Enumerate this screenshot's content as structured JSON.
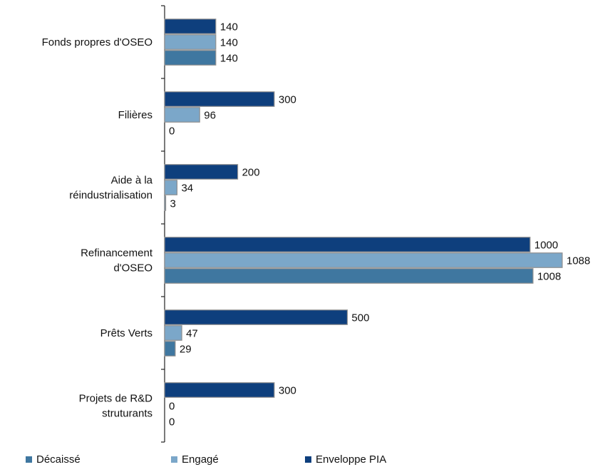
{
  "chart_data": {
    "type": "bar",
    "orientation": "horizontal",
    "categories": [
      [
        "Fonds propres d'OSEO"
      ],
      [
        "Filières"
      ],
      [
        "Aide à la",
        "réindustrialisation"
      ],
      [
        "Refinancement",
        "d'OSEO"
      ],
      [
        "Prêts Verts"
      ],
      [
        "Projets de R&D",
        "struturants"
      ]
    ],
    "series": [
      {
        "name": "Enveloppe PIA",
        "color": "#0e3f7d",
        "values": [
          140,
          300,
          200,
          1000,
          500,
          300
        ]
      },
      {
        "name": "Engagé",
        "color": "#7ba7c9",
        "values": [
          140,
          96,
          34,
          1088,
          47,
          0
        ]
      },
      {
        "name": "Décaissé",
        "color": "#3f77a0",
        "values": [
          140,
          0,
          3,
          1008,
          29,
          0
        ]
      }
    ],
    "xlim": [
      0,
      1088
    ],
    "grid": false,
    "legend": [
      "Décaissé",
      "Engagé",
      "Enveloppe PIA"
    ],
    "legend_position": "bottom"
  }
}
